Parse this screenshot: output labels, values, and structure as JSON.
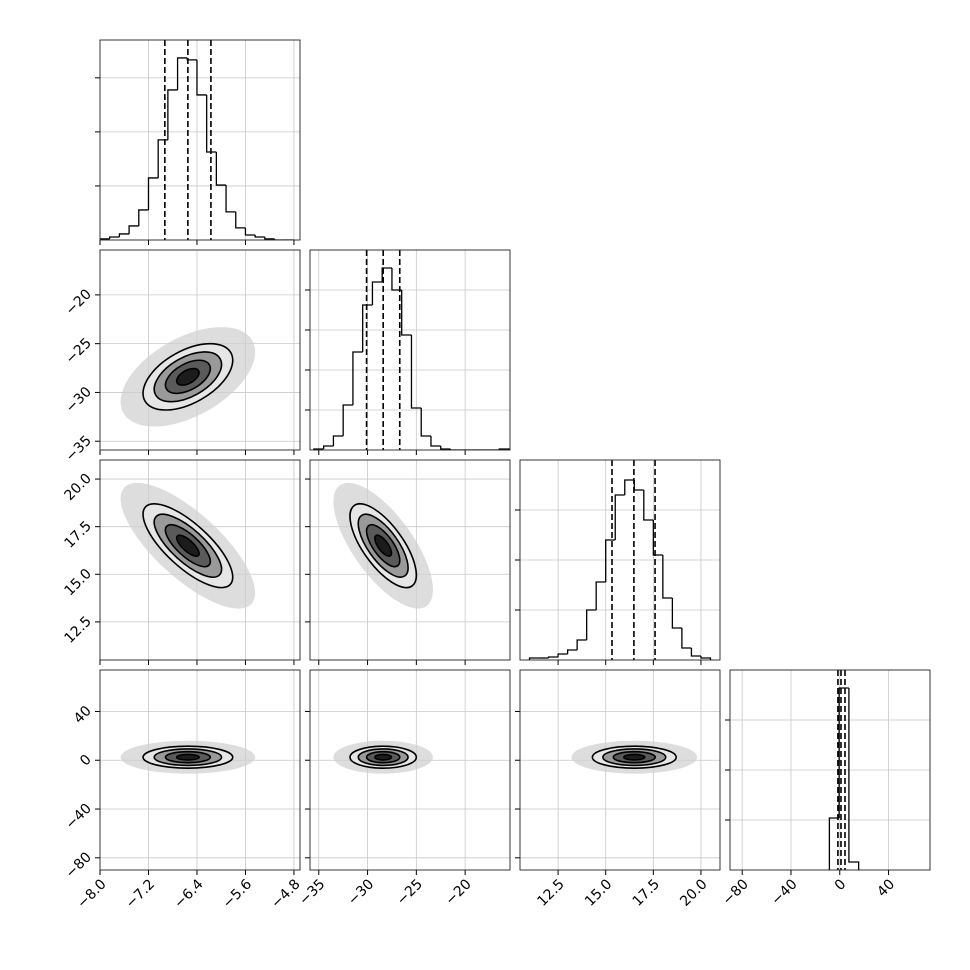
{
  "chart_data": {
    "type": "corner",
    "grid": true,
    "levels": [
      0.5,
      1,
      1.5,
      2
    ],
    "fill_colors": [
      "#1c1c1c",
      "#5a5a5a",
      "#9a9a9a",
      "#e6e6e6"
    ],
    "scatter_color": "#cfcfcf",
    "params": [
      {
        "xlim": [
          -8.0,
          -4.7
        ],
        "xticks": [
          {
            "value": -8.0,
            "label": "−8.0"
          },
          {
            "value": -7.2,
            "label": "−7.2"
          },
          {
            "value": -6.4,
            "label": "−6.4"
          },
          {
            "value": -5.6,
            "label": "−5.6"
          },
          {
            "value": -4.8,
            "label": "−4.8"
          }
        ],
        "center": -6.55,
        "sigma": 0.37,
        "quantiles": [
          -6.93,
          -6.55,
          -6.17
        ],
        "bins": [
          -8.0,
          -7.84,
          -7.68,
          -7.52,
          -7.36,
          -7.2,
          -7.04,
          -6.88,
          -6.72,
          -6.56,
          -6.4,
          -6.24,
          -6.08,
          -5.92,
          -5.76,
          -5.6,
          -5.44,
          -5.28,
          -5.12,
          -4.96,
          -4.8
        ],
        "counts": [
          5,
          14,
          28,
          65,
          139,
          287,
          463,
          694,
          842,
          833,
          671,
          407,
          254,
          130,
          56,
          23,
          14,
          5,
          0,
          0
        ],
        "ylim": [
          0,
          925
        ],
        "yticks": [
          250,
          500,
          750
        ]
      },
      {
        "xlim": [
          -35.9,
          -15.4
        ],
        "xticks": [
          {
            "value": -35,
            "label": "−35"
          },
          {
            "value": -30,
            "label": "−30"
          },
          {
            "value": -25,
            "label": "−25"
          },
          {
            "value": -20,
            "label": "−20"
          }
        ],
        "center": -28.4,
        "sigma": 1.7,
        "quantiles": [
          -30.1,
          -28.4,
          -26.7
        ],
        "bins": [
          -35.5,
          -34.5,
          -33.5,
          -32.5,
          -31.5,
          -30.5,
          -29.5,
          -28.5,
          -27.5,
          -26.5,
          -25.5,
          -24.5,
          -23.5,
          -22.5,
          -21.5,
          -20.5,
          -19.5,
          -18.5,
          -17.5,
          -16.5,
          -15.5
        ],
        "counts": [
          5,
          20,
          70,
          225,
          490,
          725,
          840,
          910,
          800,
          575,
          210,
          70,
          20,
          5,
          0,
          0,
          0,
          0,
          0,
          5
        ],
        "ylim": [
          0,
          1000
        ],
        "yticks": [
          200,
          400,
          600,
          800
        ]
      },
      {
        "xlim": [
          10.5,
          21.0
        ],
        "xticks": [
          12.5,
          {
            "value": 15.0,
            "label": "15.0"
          },
          17.5,
          {
            "value": 20.0,
            "label": "20.0"
          }
        ],
        "center": 16.5,
        "sigma": 1.1,
        "quantiles": [
          15.33,
          16.48,
          17.59
        ],
        "bins": [
          11.0,
          11.5,
          12.0,
          12.5,
          13.0,
          13.5,
          14.0,
          14.5,
          15.0,
          15.5,
          16.0,
          16.5,
          17.0,
          17.5,
          18.0,
          18.5,
          19.0,
          19.5,
          20.0,
          20.5
        ],
        "counts": [
          10,
          10,
          15,
          30,
          50,
          100,
          250,
          390,
          600,
          825,
          900,
          850,
          700,
          525,
          310,
          160,
          60,
          20,
          10
        ],
        "ylim": [
          0,
          1000
        ],
        "yticks": [
          250,
          500,
          750
        ]
      },
      {
        "xlim": [
          -90,
          74
        ],
        "xticks": [
          {
            "value": -80,
            "label": "−80"
          },
          {
            "value": -40,
            "label": "−40"
          },
          0,
          40
        ],
        "center": 2.5,
        "sigma": 4.5,
        "quantiles": [
          -1.5,
          1.0,
          4.3
        ],
        "bins": [
          -8.5,
          -0.5,
          7.5,
          15.5
        ],
        "counts": [
          260,
          910,
          40
        ],
        "ylim": [
          0,
          1000
        ],
        "yticks": [
          250,
          500,
          750
        ]
      }
    ],
    "pairs": [
      {
        "x": 0,
        "y": 1,
        "rho": 0.5
      },
      {
        "x": 0,
        "y": 2,
        "rho": -0.75
      },
      {
        "x": 1,
        "y": 2,
        "rho": -0.7
      },
      {
        "x": 0,
        "y": 3,
        "rho": 0
      },
      {
        "x": 1,
        "y": 3,
        "rho": 0
      },
      {
        "x": 2,
        "y": 3,
        "rho": 0
      }
    ]
  }
}
